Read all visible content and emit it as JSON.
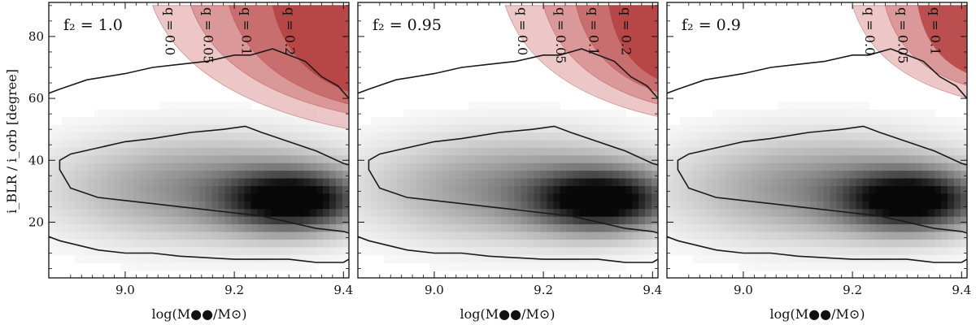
{
  "chart_data": [
    {
      "type": "heatmap",
      "title": "",
      "panel_label": "f₂ = 1.0",
      "f2": 1.0,
      "xlabel": "log(M●●/M⊙)",
      "ylabel": "i_BLR / i_orb [degree]",
      "xlim": [
        8.86,
        9.41
      ],
      "ylim": [
        2,
        91
      ],
      "xticks": [
        9.0,
        9.2,
        9.4
      ],
      "xtick_labels": [
        "9.0",
        "9.2",
        "9.4"
      ],
      "yticks": [
        20,
        40,
        60,
        80
      ],
      "ytick_labels": [
        "20",
        "40",
        "60",
        "80"
      ],
      "excluded_regions": [
        {
          "q": 0.0,
          "label": "q = 0.0",
          "x_start": 9.05,
          "lower_y_at_xmax": 50,
          "color": "#e8b7b7"
        },
        {
          "q": 0.05,
          "label": "q = 0.05",
          "x_start": 9.12,
          "lower_y_at_xmax": 55,
          "color": "#d68b8b"
        },
        {
          "q": 0.1,
          "label": "q = 0.1",
          "x_start": 9.19,
          "lower_y_at_xmax": 58,
          "color": "#c46363"
        },
        {
          "q": 0.2,
          "label": "q = 0.2",
          "x_start": 9.27,
          "lower_y_at_xmax": 62,
          "color": "#b23b3b"
        }
      ]
    },
    {
      "type": "heatmap",
      "title": "",
      "panel_label": "f₂ = 0.95",
      "f2": 0.95,
      "xlabel": "log(M●●/M⊙)",
      "ylabel": "",
      "xlim": [
        8.86,
        9.41
      ],
      "ylim": [
        2,
        91
      ],
      "xticks": [
        9.0,
        9.2,
        9.4
      ],
      "xtick_labels": [
        "9.0",
        "9.2",
        "9.4"
      ],
      "yticks": [
        20,
        40,
        60,
        80
      ],
      "ytick_labels": [],
      "excluded_regions": [
        {
          "q": 0.0,
          "label": "q = 0.0",
          "x_start": 9.13,
          "lower_y_at_xmax": 54,
          "color": "#e8b7b7"
        },
        {
          "q": 0.05,
          "label": "q = 0.05",
          "x_start": 9.2,
          "lower_y_at_xmax": 58,
          "color": "#d68b8b"
        },
        {
          "q": 0.1,
          "label": "q = 0.1",
          "x_start": 9.26,
          "lower_y_at_xmax": 62,
          "color": "#c46363"
        },
        {
          "q": 0.2,
          "label": "q = 0.2",
          "x_start": 9.32,
          "lower_y_at_xmax": 66,
          "color": "#b23b3b"
        }
      ]
    },
    {
      "type": "heatmap",
      "title": "",
      "panel_label": "f₂ = 0.9",
      "f2": 0.9,
      "xlabel": "log(M●●/M⊙)",
      "ylabel": "",
      "xlim": [
        8.86,
        9.41
      ],
      "ylim": [
        2,
        91
      ],
      "xticks": [
        9.0,
        9.2,
        9.4
      ],
      "xtick_labels": [
        "9.0",
        "9.2",
        "9.4"
      ],
      "yticks": [
        20,
        40,
        60,
        80
      ],
      "ytick_labels": [],
      "excluded_regions": [
        {
          "q": 0.0,
          "label": "q = 0.0",
          "x_start": 9.2,
          "lower_y_at_xmax": 60,
          "color": "#e8b7b7"
        },
        {
          "q": 0.05,
          "label": "q = 0.05",
          "x_start": 9.26,
          "lower_y_at_xmax": 64,
          "color": "#d68b8b"
        },
        {
          "q": 0.1,
          "label": "q = 0.1",
          "x_start": 9.32,
          "lower_y_at_xmax": 68,
          "color": "#b23b3b"
        }
      ]
    }
  ],
  "posterior": {
    "peak": {
      "x": 9.31,
      "y": 27
    },
    "contour_inner": [
      [
        8.88,
        37
      ],
      [
        8.9,
        31
      ],
      [
        8.95,
        28
      ],
      [
        9.0,
        27
      ],
      [
        9.05,
        26
      ],
      [
        9.1,
        25
      ],
      [
        9.15,
        24
      ],
      [
        9.2,
        23
      ],
      [
        9.25,
        22
      ],
      [
        9.3,
        20
      ],
      [
        9.35,
        18
      ],
      [
        9.4,
        17
      ],
      [
        9.42,
        16
      ],
      [
        9.42,
        38
      ],
      [
        9.4,
        39
      ],
      [
        9.35,
        43
      ],
      [
        9.3,
        46
      ],
      [
        9.25,
        49
      ],
      [
        9.22,
        51
      ],
      [
        9.18,
        50
      ],
      [
        9.12,
        49
      ],
      [
        9.05,
        47
      ],
      [
        9.0,
        46
      ],
      [
        8.95,
        44
      ],
      [
        8.9,
        42
      ],
      [
        8.88,
        40
      ]
    ],
    "contour_outer_upper": [
      [
        8.85,
        61
      ],
      [
        8.88,
        63
      ],
      [
        8.93,
        66
      ],
      [
        9.0,
        68
      ],
      [
        9.05,
        70
      ],
      [
        9.1,
        71
      ],
      [
        9.15,
        72
      ],
      [
        9.2,
        74
      ],
      [
        9.23,
        74
      ],
      [
        9.27,
        76
      ],
      [
        9.3,
        74
      ],
      [
        9.33,
        72
      ],
      [
        9.36,
        67
      ],
      [
        9.39,
        64
      ],
      [
        9.41,
        60
      ]
    ],
    "contour_outer_lower": [
      [
        8.85,
        16
      ],
      [
        8.88,
        14
      ],
      [
        8.95,
        11
      ],
      [
        9.0,
        10
      ],
      [
        9.05,
        10
      ],
      [
        9.1,
        9
      ],
      [
        9.2,
        8
      ],
      [
        9.3,
        8
      ],
      [
        9.35,
        7
      ],
      [
        9.4,
        7
      ],
      [
        9.41,
        8
      ]
    ]
  }
}
